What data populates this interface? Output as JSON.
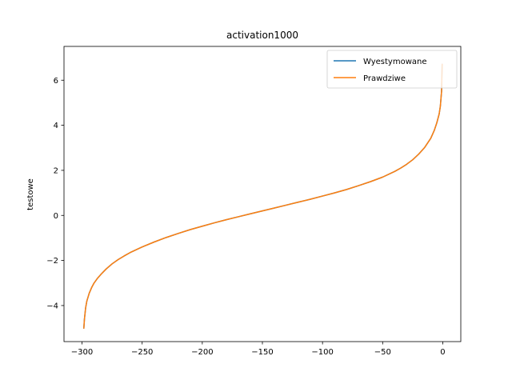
{
  "chart_data": {
    "type": "line",
    "title": "activation1000",
    "xlabel": "",
    "ylabel": "testowe",
    "xlim": [
      -315,
      15
    ],
    "ylim": [
      -5.6,
      7.5
    ],
    "xticks": [
      -300,
      -250,
      -200,
      -150,
      -100,
      -50,
      0
    ],
    "xtick_labels": [
      "−300",
      "−250",
      "−200",
      "−150",
      "−100",
      "−50",
      "0"
    ],
    "yticks": [
      -4,
      -2,
      0,
      2,
      4,
      6
    ],
    "ytick_labels": [
      "−4",
      "−2",
      "0",
      "2",
      "4",
      "6"
    ],
    "grid": false,
    "legend_position": "top-right",
    "x": [
      -298.5,
      -298,
      -297,
      -296,
      -294,
      -292,
      -290,
      -287,
      -284,
      -280,
      -275,
      -270,
      -265,
      -260,
      -250,
      -240,
      -230,
      -220,
      -210,
      -200,
      -190,
      -180,
      -170,
      -160,
      -150,
      -140,
      -130,
      -120,
      -110,
      -100,
      -90,
      -80,
      -70,
      -60,
      -50,
      -40,
      -35,
      -30,
      -25,
      -20,
      -15,
      -10,
      -7,
      -5,
      -3,
      -2,
      -1,
      -0.5
    ],
    "series": [
      {
        "name": "Wyestymowane",
        "color": "#1f77b4",
        "values": [
          -5.0,
          -4.6,
          -4.1,
          -3.8,
          -3.45,
          -3.2,
          -3.0,
          -2.78,
          -2.6,
          -2.38,
          -2.15,
          -1.96,
          -1.8,
          -1.65,
          -1.4,
          -1.18,
          -0.98,
          -0.8,
          -0.63,
          -0.48,
          -0.33,
          -0.19,
          -0.06,
          0.07,
          0.2,
          0.33,
          0.46,
          0.59,
          0.72,
          0.86,
          1.0,
          1.15,
          1.32,
          1.5,
          1.7,
          1.95,
          2.1,
          2.27,
          2.47,
          2.72,
          3.02,
          3.42,
          3.78,
          4.1,
          4.5,
          4.85,
          5.5,
          6.7
        ]
      },
      {
        "name": "Prawdziwe",
        "color": "#ff7f0e",
        "values": [
          -5.0,
          -4.6,
          -4.1,
          -3.8,
          -3.45,
          -3.2,
          -3.0,
          -2.78,
          -2.6,
          -2.38,
          -2.15,
          -1.96,
          -1.8,
          -1.65,
          -1.4,
          -1.18,
          -0.98,
          -0.8,
          -0.63,
          -0.48,
          -0.33,
          -0.19,
          -0.06,
          0.07,
          0.2,
          0.33,
          0.46,
          0.59,
          0.72,
          0.86,
          1.0,
          1.15,
          1.32,
          1.5,
          1.7,
          1.95,
          2.1,
          2.27,
          2.47,
          2.72,
          3.02,
          3.42,
          3.78,
          4.1,
          4.5,
          4.85,
          5.5,
          6.7
        ]
      }
    ]
  }
}
